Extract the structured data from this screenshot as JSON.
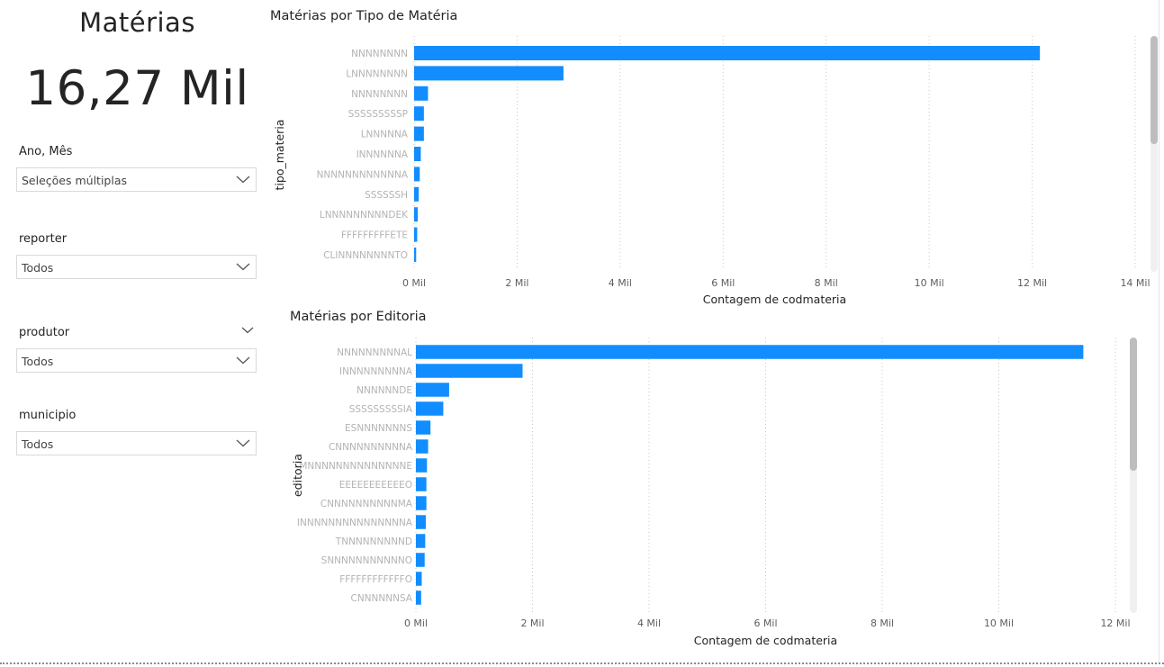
{
  "card": {
    "title": "Matérias",
    "value": "16,27 Mil"
  },
  "slicers": [
    {
      "label": "Ano, Mês",
      "value": "Seleções múltiplas"
    },
    {
      "label": "reporter",
      "value": "Todos"
    },
    {
      "label": "produtor",
      "value": "Todos"
    },
    {
      "label": "municipio",
      "value": "Todos"
    }
  ],
  "icons": {
    "dropdown": "chevron-down-icon"
  },
  "colors": {
    "bar": "#118DFF",
    "grid": "#c8c8c8",
    "scrollbar_thumb": "#bdbdbd",
    "scrollbar_track": "#f0f0f0"
  },
  "chart_data": [
    {
      "type": "bar",
      "orientation": "horizontal",
      "title": "Matérias por Tipo de Matéria",
      "xlabel": "Contagem de codmateria",
      "ylabel": "tipo_materia",
      "xlim": [
        0,
        14000
      ],
      "xticks": [
        0,
        2000,
        4000,
        6000,
        8000,
        10000,
        12000,
        14000
      ],
      "xtick_labels": [
        "0 Mil",
        "2 Mil",
        "4 Mil",
        "6 Mil",
        "8 Mil",
        "10 Mil",
        "12 Mil",
        "14 Mil"
      ],
      "grid": true,
      "categories": [
        "NNNNNNNN",
        "LNNNNNNNN",
        "NNNNNNNN",
        "SSSSSSSSSP",
        "LNNNNNA",
        "INNNNNNA",
        "NNNNNNNNNNNNA",
        "SSSSSSH",
        "LNNNNNNNNNDEK",
        "FFFFFFFFFETE",
        "CLINNNNNNNNTO"
      ],
      "values": [
        12150,
        2900,
        270,
        190,
        190,
        130,
        110,
        90,
        70,
        60,
        40
      ]
    },
    {
      "type": "bar",
      "orientation": "horizontal",
      "title": "Matérias por Editoria",
      "xlabel": "Contagem de codmateria",
      "ylabel": "editoria",
      "xlim": [
        0,
        12000
      ],
      "xticks": [
        0,
        2000,
        4000,
        6000,
        8000,
        10000,
        12000
      ],
      "xtick_labels": [
        "0 Mil",
        "2 Mil",
        "4 Mil",
        "6 Mil",
        "8 Mil",
        "10 Mil",
        "12 Mil"
      ],
      "grid": true,
      "categories": [
        "NNNNNNNNNAL",
        "INNNNNNNNNA",
        "NNNNNNDE",
        "SSSSSSSSSIA",
        "ESNNNNNNNS",
        "CNNNNNNNNNNA",
        "MNNNNNNNNNNNNNNE",
        "EEEEEEEEEEEO",
        "CNNNNNNNNNNMA",
        "INNNNNNNNNNNNNNNA",
        "TNNNNNNNNND",
        "SNNNNNNNNNNNO",
        "FFFFFFFFFFFFO",
        "CNNNNNNSA"
      ],
      "values": [
        11450,
        1830,
        570,
        470,
        250,
        210,
        190,
        180,
        180,
        170,
        160,
        150,
        100,
        90
      ]
    }
  ]
}
